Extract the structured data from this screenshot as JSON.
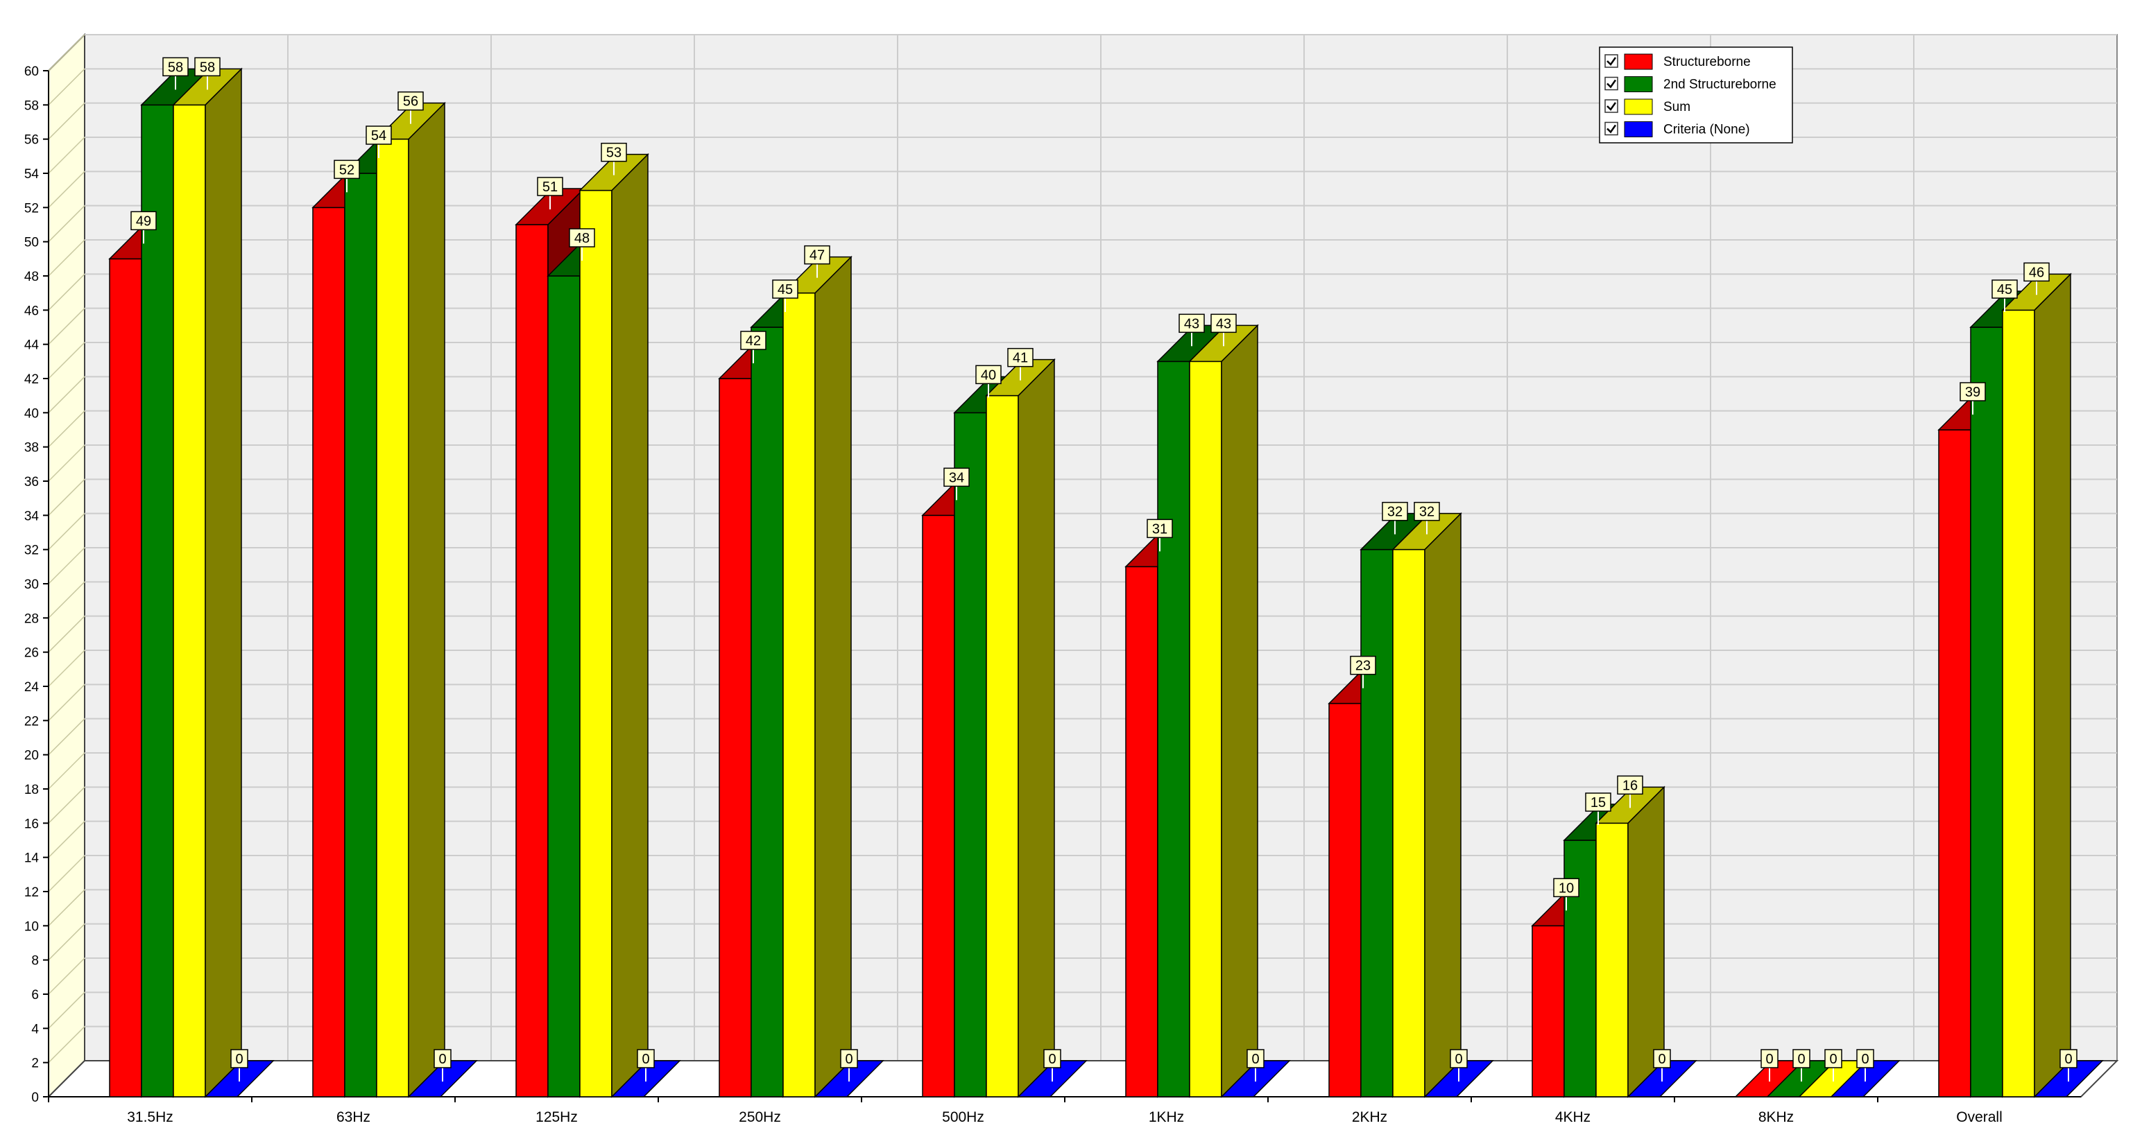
{
  "chart_data": {
    "type": "bar",
    "subtype": "3d-clustered",
    "categories": [
      "31.5Hz",
      "63Hz",
      "125Hz",
      "250Hz",
      "500Hz",
      "1KHz",
      "2KHz",
      "4KHz",
      "8KHz",
      "Overall"
    ],
    "series": [
      {
        "name": "Structureborne",
        "color": "#ff0000",
        "values": [
          49,
          52,
          51,
          42,
          34,
          31,
          23,
          10,
          0,
          39
        ],
        "checked": true
      },
      {
        "name": "2nd Structureborne",
        "color": "#008000",
        "values": [
          58,
          54,
          48,
          45,
          40,
          43,
          32,
          15,
          0,
          45
        ],
        "checked": true
      },
      {
        "name": "Sum",
        "color": "#ffff00",
        "values": [
          58,
          56,
          53,
          47,
          41,
          43,
          32,
          16,
          0,
          46
        ],
        "checked": true
      },
      {
        "name": "Criteria (None)",
        "color": "#0000ff",
        "values": [
          0,
          0,
          0,
          0,
          0,
          0,
          0,
          0,
          0,
          0
        ],
        "checked": true
      }
    ],
    "ylim": [
      0,
      60
    ],
    "yticks": [
      0,
      2,
      4,
      6,
      8,
      10,
      12,
      14,
      16,
      18,
      20,
      22,
      24,
      26,
      28,
      30,
      32,
      34,
      36,
      38,
      40,
      42,
      44,
      46,
      48,
      50,
      52,
      54,
      56,
      58,
      60
    ],
    "grid": true,
    "legend_position": "top-right",
    "colors": {
      "back_wall": "#efefef",
      "left_wall": "#ffffe0",
      "floor": "#ffffff",
      "grid": "#cccccc",
      "label_box": "#ffffcc"
    }
  }
}
